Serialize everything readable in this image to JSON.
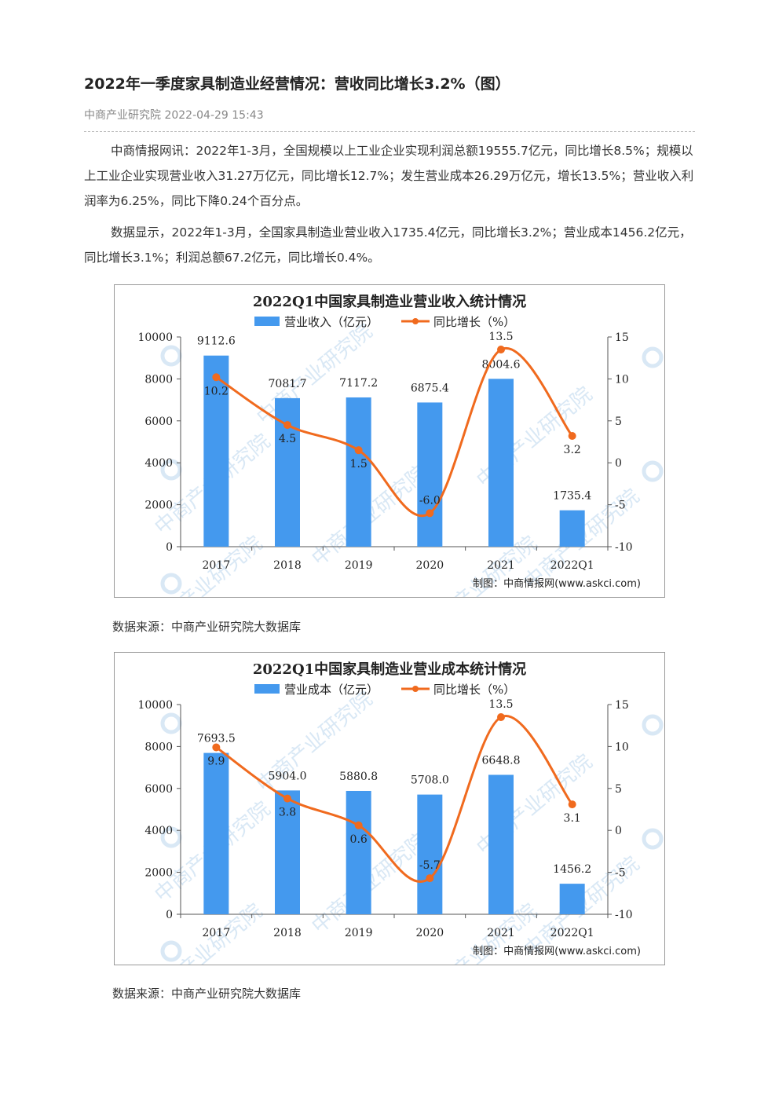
{
  "article": {
    "title": "2022年一季度家具制造业经营情况：营收同比增长3.2%（图）",
    "meta": "中商产业研究院 2022-04-29 15:43",
    "paragraph1": "中商情报网讯：2022年1-3月，全国规模以上工业企业实现利润总额19555.7亿元，同比增长8.5%；规模以上工业企业实现营业收入31.27万亿元，同比增长12.7%；发生营业成本26.29万亿元，增长13.5%；营业收入利润率为6.25%，同比下降0.24个百分点。",
    "paragraph2": "数据显示，2022年1-3月，全国家具制造业营业收入1735.4亿元，同比增长3.2%；营业成本1456.2亿元，同比增长3.1%；利润总额67.2亿元，同比增长0.4%。",
    "source1": "数据来源：中商产业研究院大数据库",
    "source2": "数据来源：中商产业研究院大数据库"
  },
  "colors": {
    "bar": "#4499ee",
    "line": "#f06a1e",
    "watermark": "#d9e8f5"
  },
  "chart_data": [
    {
      "type": "bar",
      "title": "2022Q1中国家具制造业营业收入统计情况",
      "categories": [
        "2017",
        "2018",
        "2019",
        "2020",
        "2021",
        "2022Q1"
      ],
      "series": [
        {
          "name": "营业收入（亿元）",
          "type": "bar",
          "axis": "left",
          "values": [
            9112.6,
            7081.7,
            7117.2,
            6875.4,
            8004.6,
            1735.4
          ],
          "labels": [
            "9112.6",
            "7081.7",
            "7117.2",
            "6875.4",
            "8004.6",
            "1735.4"
          ]
        },
        {
          "name": "同比增长（%）",
          "type": "line",
          "axis": "right",
          "values": [
            10.2,
            4.5,
            1.5,
            -6.0,
            13.5,
            3.2
          ],
          "labels": [
            "10.2",
            "4.5",
            "1.5",
            "-6.0",
            "13.5",
            "3.2"
          ]
        }
      ],
      "y_left": {
        "min": 0,
        "max": 10000,
        "ticks": [
          "0",
          "2000",
          "4000",
          "6000",
          "8000",
          "10000"
        ]
      },
      "y_right": {
        "min": -10,
        "max": 15,
        "ticks": [
          "-10",
          "-5",
          "0",
          "5",
          "10",
          "15"
        ]
      },
      "credit": "制图：中商情报网(www.askci.com)",
      "watermark_text": "中商产业研究院",
      "legend": "top"
    },
    {
      "type": "bar",
      "title": "2022Q1中国家具制造业营业成本统计情况",
      "categories": [
        "2017",
        "2018",
        "2019",
        "2020",
        "2021",
        "2022Q1"
      ],
      "series": [
        {
          "name": "营业成本（亿元）",
          "type": "bar",
          "axis": "left",
          "values": [
            7693.5,
            5904.0,
            5880.8,
            5708.0,
            6648.8,
            1456.2
          ],
          "labels": [
            "7693.5",
            "5904.0",
            "5880.8",
            "5708.0",
            "6648.8",
            "1456.2"
          ]
        },
        {
          "name": "同比增长（%）",
          "type": "line",
          "axis": "right",
          "values": [
            9.9,
            3.8,
            0.6,
            -5.7,
            13.5,
            3.1
          ],
          "labels": [
            "9.9",
            "3.8",
            "0.6",
            "-5.7",
            "13.5",
            "3.1"
          ]
        }
      ],
      "y_left": {
        "min": 0,
        "max": 10000,
        "ticks": [
          "0",
          "2000",
          "4000",
          "6000",
          "8000",
          "10000"
        ]
      },
      "y_right": {
        "min": -10,
        "max": 15,
        "ticks": [
          "-10",
          "-5",
          "0",
          "5",
          "10",
          "15"
        ]
      },
      "credit": "制图：中商情报网(www.askci.com)",
      "watermark_text": "中商产业研究院",
      "legend": "top"
    }
  ]
}
